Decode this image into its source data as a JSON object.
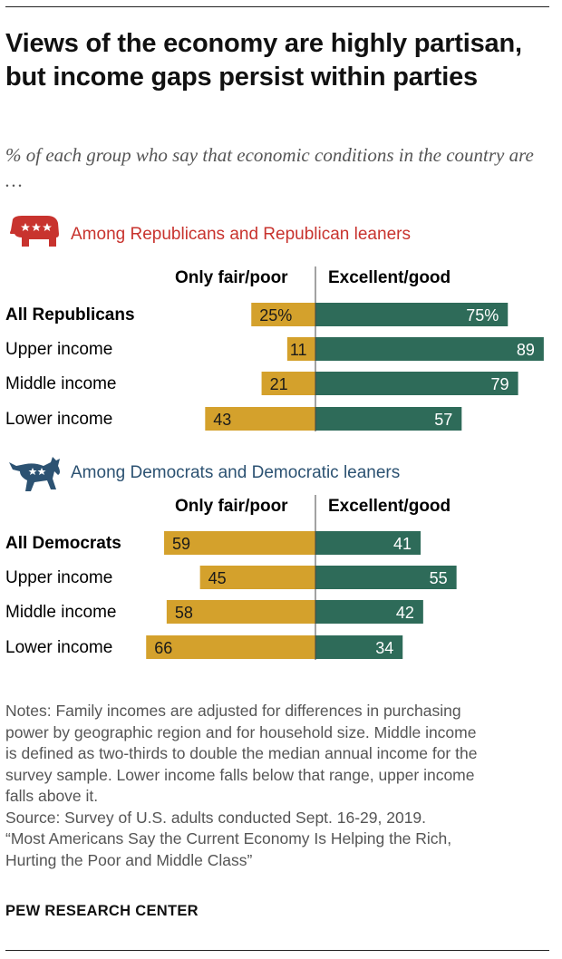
{
  "title": "Views of the economy are highly partisan, but income gaps persist within parties",
  "subtitle": "% of each group who say that economic conditions in the country are …",
  "colors": {
    "negative": "#d4a12c",
    "positive": "#2e6b59",
    "republican": "#c8332e",
    "democrat": "#2c5272"
  },
  "icons": {
    "republican": "elephant-icon",
    "democrat": "donkey-icon"
  },
  "chart_data": [
    {
      "type": "bar",
      "subtitle": "Among Republicans and Republican leaners",
      "column_labels": [
        "Only fair/poor",
        "Excellent/good"
      ],
      "categories": [
        "All Republicans",
        "Upper income",
        "Middle income",
        "Lower income"
      ],
      "series": [
        {
          "name": "Only fair/poor",
          "values": [
            25,
            11,
            21,
            43
          ],
          "labels": [
            "25%",
            "11",
            "21",
            "43"
          ]
        },
        {
          "name": "Excellent/good",
          "values": [
            75,
            89,
            79,
            57
          ],
          "labels": [
            "75%",
            "89",
            "79",
            "57"
          ]
        }
      ]
    },
    {
      "type": "bar",
      "subtitle": "Among Democrats and Democratic leaners",
      "column_labels": [
        "Only fair/poor",
        "Excellent/good"
      ],
      "categories": [
        "All Democrats",
        "Upper income",
        "Middle income",
        "Lower income"
      ],
      "series": [
        {
          "name": "Only fair/poor",
          "values": [
            59,
            45,
            58,
            66
          ],
          "labels": [
            "59",
            "45",
            "58",
            "66"
          ]
        },
        {
          "name": "Excellent/good",
          "values": [
            41,
            55,
            42,
            34
          ],
          "labels": [
            "41",
            "55",
            "42",
            "34"
          ]
        }
      ]
    }
  ],
  "notes": [
    "Notes: Family incomes are adjusted for differences in purchasing",
    "power by geographic region and for household size. Middle income",
    "is defined as two-thirds to double the median annual income for the",
    "survey sample. Lower income falls below that range, upper income",
    "falls above it.",
    "Source: Survey of U.S. adults conducted Sept. 16-29, 2019.",
    "“Most Americans Say the Current Economy Is Helping the Rich,",
    "Hurting the Poor and Middle Class”"
  ],
  "brand": "PEW RESEARCH CENTER"
}
